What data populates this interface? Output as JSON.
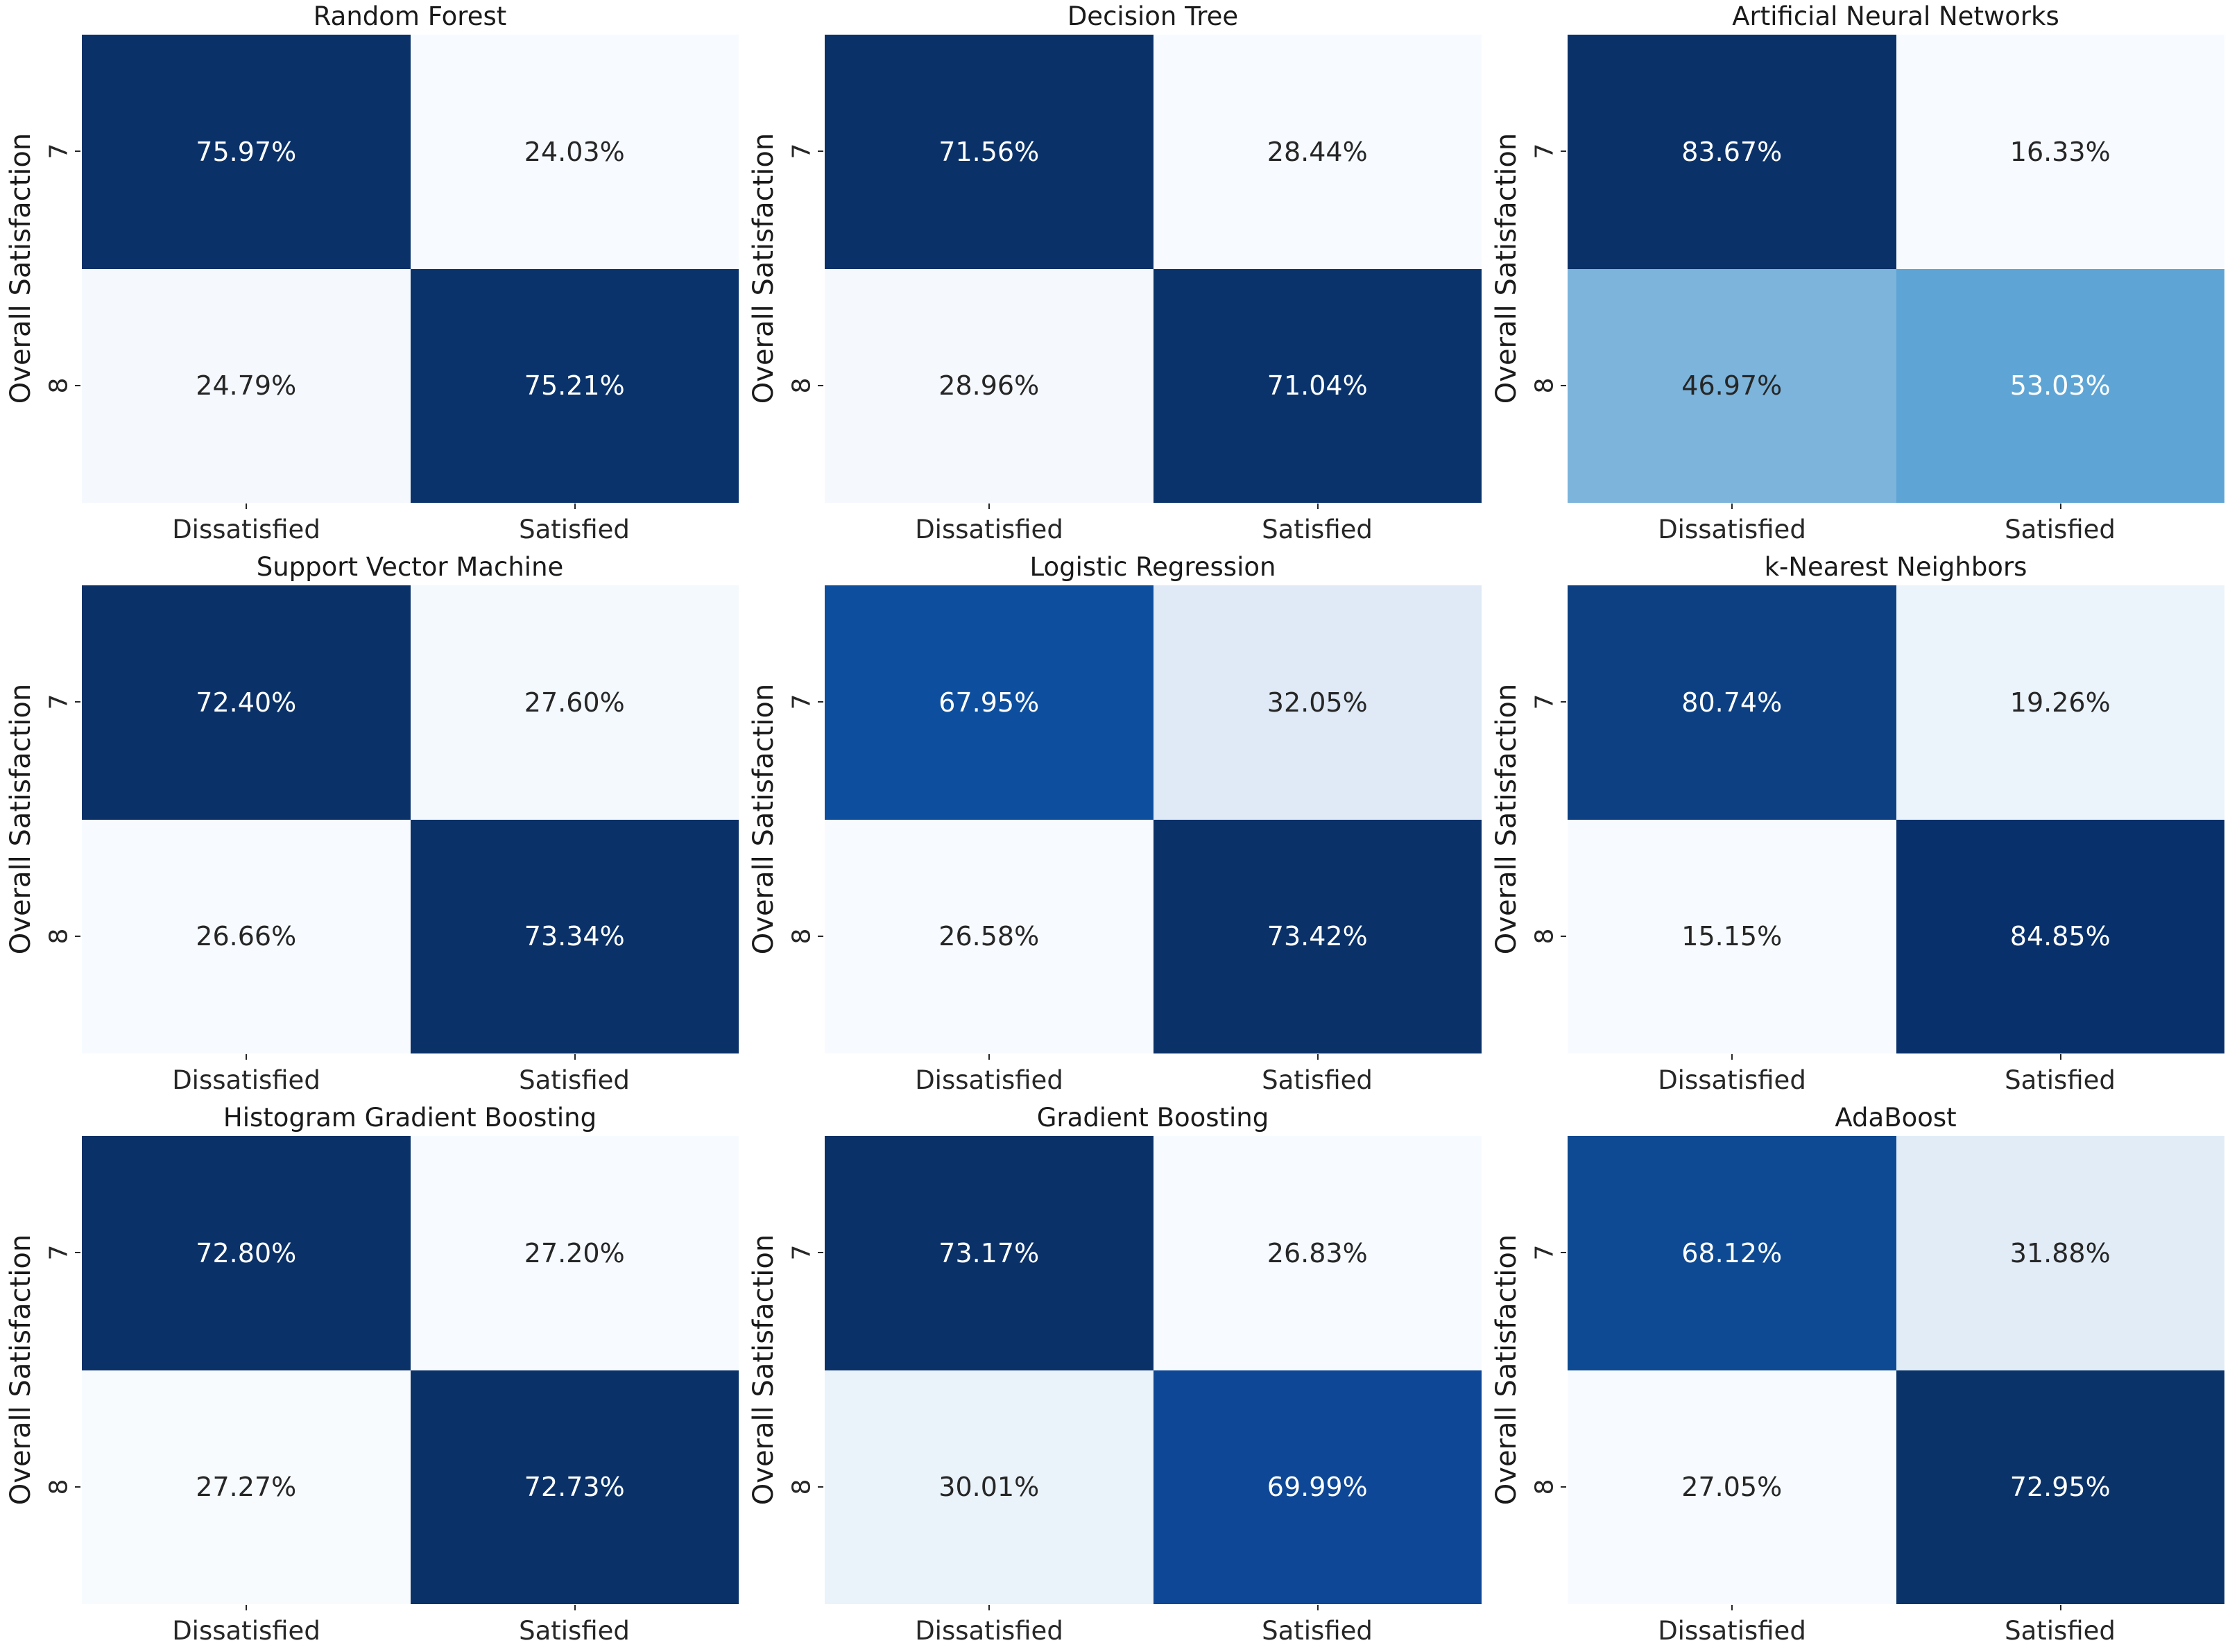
{
  "figure": {
    "background": "#ffffff",
    "title_color": "#1a1a1a",
    "tick_color": "#262626"
  },
  "chart_data": {
    "type": "heatmap",
    "layout": {
      "grid_rows": 3,
      "grid_cols": 3,
      "legend": "none",
      "grid": "off"
    },
    "colormap": "Blues",
    "ylabel": "Overall Satisfaction",
    "x_categories": [
      "Dissatisfied",
      "Satisfied"
    ],
    "y_categories": [
      "7",
      "8"
    ],
    "value_format": "percent_two_decimals",
    "text_colors": {
      "on_dark": "#ffffff",
      "on_light": "#262626"
    },
    "panels": [
      {
        "title": "Random Forest",
        "matrix": [
          [
            75.97,
            24.03
          ],
          [
            24.79,
            75.21
          ]
        ],
        "cells": [
          {
            "label": "75.97%",
            "bg": "#0a3268",
            "fg": "#ffffff"
          },
          {
            "label": "24.03%",
            "bg": "#f7fbff",
            "fg": "#262626"
          },
          {
            "label": "24.79%",
            "bg": "#f5f9fe",
            "fg": "#262626"
          },
          {
            "label": "75.21%",
            "bg": "#0a336c",
            "fg": "#ffffff"
          }
        ]
      },
      {
        "title": "Decision Tree",
        "matrix": [
          [
            71.56,
            28.44
          ],
          [
            28.96,
            71.04
          ]
        ],
        "cells": [
          {
            "label": "71.56%",
            "bg": "#0a3268",
            "fg": "#ffffff"
          },
          {
            "label": "28.44%",
            "bg": "#f7fbff",
            "fg": "#262626"
          },
          {
            "label": "28.96%",
            "bg": "#f5f9fe",
            "fg": "#262626"
          },
          {
            "label": "71.04%",
            "bg": "#0a336c",
            "fg": "#ffffff"
          }
        ]
      },
      {
        "title": "Artificial Neural Networks",
        "matrix": [
          [
            83.67,
            16.33
          ],
          [
            46.97,
            53.03
          ]
        ],
        "cells": [
          {
            "label": "83.67%",
            "bg": "#0a3168",
            "fg": "#ffffff"
          },
          {
            "label": "16.33%",
            "bg": "#f7fbff",
            "fg": "#262626"
          },
          {
            "label": "46.97%",
            "bg": "#7cb4db",
            "fg": "#262626"
          },
          {
            "label": "53.03%",
            "bg": "#5ea5d5",
            "fg": "#ffffff"
          }
        ]
      },
      {
        "title": "Support Vector Machine",
        "matrix": [
          [
            72.4,
            27.6
          ],
          [
            26.66,
            73.34
          ]
        ],
        "cells": [
          {
            "label": "72.40%",
            "bg": "#0a3268",
            "fg": "#ffffff"
          },
          {
            "label": "27.60%",
            "bg": "#f4f9fd",
            "fg": "#262626"
          },
          {
            "label": "26.66%",
            "bg": "#f7fbff",
            "fg": "#262626"
          },
          {
            "label": "73.34%",
            "bg": "#0a3168",
            "fg": "#ffffff"
          }
        ]
      },
      {
        "title": "Logistic Regression",
        "matrix": [
          [
            67.95,
            32.05
          ],
          [
            26.58,
            73.42
          ]
        ],
        "cells": [
          {
            "label": "67.95%",
            "bg": "#0d4f9e",
            "fg": "#ffffff"
          },
          {
            "label": "32.05%",
            "bg": "#dfeaf6",
            "fg": "#262626"
          },
          {
            "label": "26.58%",
            "bg": "#f7fbff",
            "fg": "#262626"
          },
          {
            "label": "73.42%",
            "bg": "#0a3168",
            "fg": "#ffffff"
          }
        ]
      },
      {
        "title": "k-Nearest Neighbors",
        "matrix": [
          [
            80.74,
            19.26
          ],
          [
            15.15,
            84.85
          ]
        ],
        "cells": [
          {
            "label": "80.74%",
            "bg": "#0c4083",
            "fg": "#ffffff"
          },
          {
            "label": "19.26%",
            "bg": "#ebf3fb",
            "fg": "#262626"
          },
          {
            "label": "15.15%",
            "bg": "#f7fbff",
            "fg": "#262626"
          },
          {
            "label": "84.85%",
            "bg": "#08306b",
            "fg": "#ffffff"
          }
        ]
      },
      {
        "title": "Histogram Gradient Boosting",
        "matrix": [
          [
            72.8,
            27.2
          ],
          [
            27.27,
            72.73
          ]
        ],
        "cells": [
          {
            "label": "72.80%",
            "bg": "#0a3168",
            "fg": "#ffffff"
          },
          {
            "label": "27.20%",
            "bg": "#f7fbff",
            "fg": "#262626"
          },
          {
            "label": "27.27%",
            "bg": "#f7fbfe",
            "fg": "#262626"
          },
          {
            "label": "72.73%",
            "bg": "#0a3269",
            "fg": "#ffffff"
          }
        ]
      },
      {
        "title": "Gradient Boosting",
        "matrix": [
          [
            73.17,
            26.83
          ],
          [
            30.01,
            69.99
          ]
        ],
        "cells": [
          {
            "label": "73.17%",
            "bg": "#0a3168",
            "fg": "#ffffff"
          },
          {
            "label": "26.83%",
            "bg": "#f7fbff",
            "fg": "#262626"
          },
          {
            "label": "30.01%",
            "bg": "#eaf2fa",
            "fg": "#262626"
          },
          {
            "label": "69.99%",
            "bg": "#0d4795",
            "fg": "#ffffff"
          }
        ]
      },
      {
        "title": "AdaBoost",
        "matrix": [
          [
            68.12,
            31.88
          ],
          [
            27.05,
            72.95
          ]
        ],
        "cells": [
          {
            "label": "68.12%",
            "bg": "#0d4a93",
            "fg": "#ffffff"
          },
          {
            "label": "31.88%",
            "bg": "#e1ecf7",
            "fg": "#262626"
          },
          {
            "label": "27.05%",
            "bg": "#f7fbff",
            "fg": "#262626"
          },
          {
            "label": "72.95%",
            "bg": "#093369",
            "fg": "#ffffff"
          }
        ]
      }
    ]
  }
}
